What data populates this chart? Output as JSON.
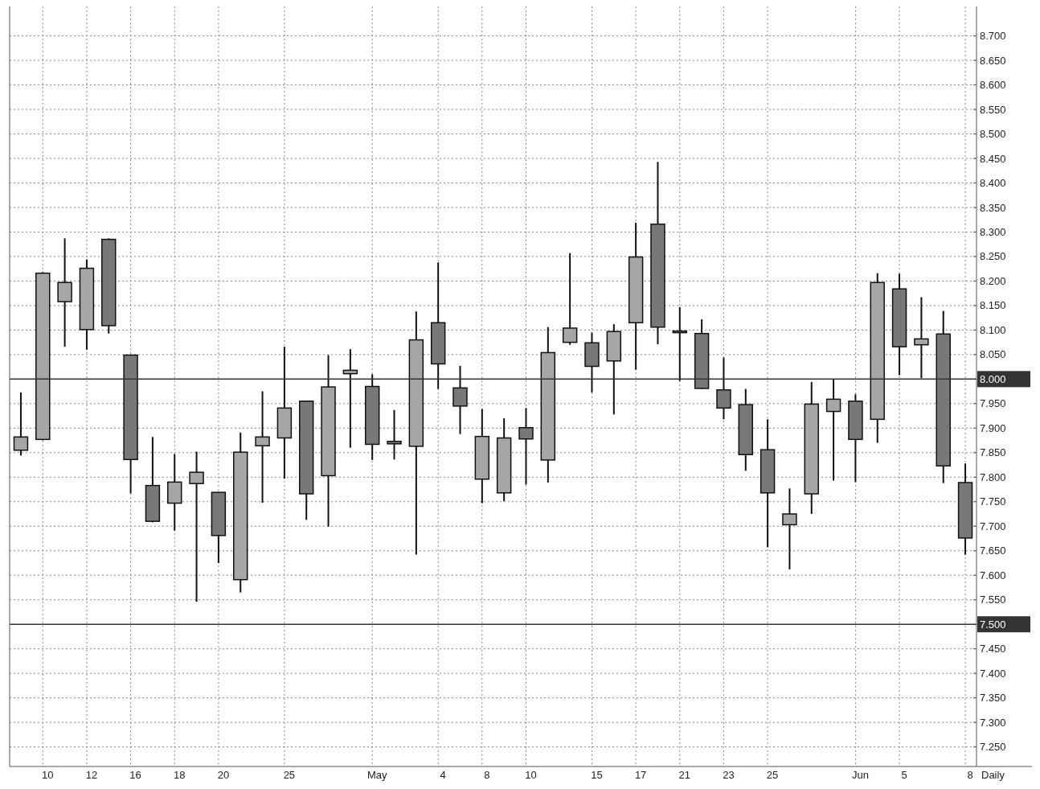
{
  "chart_data": {
    "type": "candlestick",
    "categories": [
      null,
      "10",
      null,
      "12",
      null,
      "16",
      null,
      "18",
      null,
      "20",
      null,
      null,
      "25",
      null,
      null,
      null,
      "May",
      null,
      null,
      "4",
      null,
      "8",
      null,
      "10",
      null,
      null,
      "15",
      null,
      "17",
      null,
      "21",
      null,
      "23",
      null,
      "25",
      null,
      null,
      null,
      "Jun",
      null,
      "5",
      null,
      null,
      "8"
    ],
    "ohlc": [
      [
        7.855,
        7.973,
        7.844,
        7.882
      ],
      [
        7.877,
        8.218,
        7.875,
        8.216
      ],
      [
        8.158,
        8.287,
        8.066,
        8.197
      ],
      [
        8.101,
        8.244,
        8.06,
        8.226
      ],
      [
        8.285,
        8.287,
        8.093,
        8.109
      ],
      [
        8.049,
        8.05,
        7.767,
        7.836
      ],
      [
        7.783,
        7.882,
        7.708,
        7.71
      ],
      [
        7.747,
        7.847,
        7.691,
        7.79
      ],
      [
        7.787,
        7.852,
        7.546,
        7.81
      ],
      [
        7.769,
        7.77,
        7.625,
        7.681
      ],
      [
        7.591,
        7.891,
        7.565,
        7.851
      ],
      [
        7.864,
        7.975,
        7.748,
        7.882
      ],
      [
        7.88,
        8.066,
        7.797,
        7.941
      ],
      [
        7.955,
        7.956,
        7.713,
        7.766
      ],
      [
        7.803,
        8.049,
        7.699,
        7.984
      ],
      [
        8.011,
        8.061,
        7.86,
        8.018
      ],
      [
        7.985,
        8.01,
        7.835,
        7.867
      ],
      [
        7.873,
        7.937,
        7.836,
        7.868
      ],
      [
        7.863,
        8.138,
        7.642,
        8.08
      ],
      [
        8.115,
        8.238,
        7.98,
        8.031
      ],
      [
        7.982,
        8.027,
        7.888,
        7.945
      ],
      [
        7.796,
        7.939,
        7.747,
        7.883
      ],
      [
        7.768,
        7.92,
        7.751,
        7.88
      ],
      [
        7.901,
        7.941,
        7.785,
        7.878
      ],
      [
        7.835,
        8.106,
        7.789,
        8.054
      ],
      [
        8.075,
        8.257,
        8.07,
        8.104
      ],
      [
        8.074,
        8.095,
        7.973,
        8.026
      ],
      [
        8.037,
        8.112,
        7.928,
        8.097
      ],
      [
        8.115,
        8.319,
        8.019,
        8.249
      ],
      [
        8.316,
        8.443,
        8.071,
        8.106
      ],
      [
        8.098,
        8.147,
        7.996,
        8.098
      ],
      [
        8.093,
        8.122,
        7.98,
        7.981
      ],
      [
        7.978,
        8.044,
        7.918,
        7.941
      ],
      [
        7.948,
        7.98,
        7.813,
        7.846
      ],
      [
        7.856,
        7.918,
        7.657,
        7.768
      ],
      [
        7.703,
        7.777,
        7.612,
        7.725
      ],
      [
        7.766,
        7.994,
        7.725,
        7.949
      ],
      [
        7.934,
        8.0,
        7.793,
        7.959
      ],
      [
        7.955,
        7.969,
        7.79,
        7.877
      ],
      [
        7.918,
        8.216,
        7.87,
        8.197
      ],
      [
        8.184,
        8.215,
        8.008,
        8.066
      ],
      [
        8.07,
        8.167,
        8.002,
        8.082
      ],
      [
        8.092,
        8.139,
        7.788,
        7.823
      ],
      [
        7.789,
        7.828,
        7.642,
        7.676
      ]
    ],
    "colors": [
      "#a6a6a6",
      "#a6a6a6",
      "#a6a6a6",
      "#a6a6a6",
      "#787878",
      "#787878",
      "#787878",
      "#a6a6a6",
      "#a6a6a6",
      "#787878",
      "#a6a6a6",
      "#a6a6a6",
      "#a6a6a6",
      "#787878",
      "#a6a6a6",
      "#a6a6a6",
      "#787878",
      "#787878",
      "#a6a6a6",
      "#787878",
      "#787878",
      "#a6a6a6",
      "#a6a6a6",
      "#787878",
      "#a6a6a6",
      "#a6a6a6",
      "#787878",
      "#a6a6a6",
      "#a6a6a6",
      "#787878",
      "#787878",
      "#787878",
      "#787878",
      "#787878",
      "#787878",
      "#a6a6a6",
      "#a6a6a6",
      "#a6a6a6",
      "#787878",
      "#a6a6a6",
      "#787878",
      "#a6a6a6",
      "#787878",
      "#787878"
    ],
    "ylim": [
      7.21,
      8.76
    ],
    "yticks": [
      {
        "value": 7.25,
        "label": "7.250"
      },
      {
        "value": 7.3,
        "label": "7.300"
      },
      {
        "value": 7.35,
        "label": "7.350"
      },
      {
        "value": 7.4,
        "label": "7.400"
      },
      {
        "value": 7.45,
        "label": "7.450"
      },
      {
        "value": 7.55,
        "label": "7.550"
      },
      {
        "value": 7.6,
        "label": "7.600"
      },
      {
        "value": 7.65,
        "label": "7.650"
      },
      {
        "value": 7.7,
        "label": "7.700"
      },
      {
        "value": 7.75,
        "label": "7.750"
      },
      {
        "value": 7.8,
        "label": "7.800"
      },
      {
        "value": 7.85,
        "label": "7.850"
      },
      {
        "value": 7.9,
        "label": "7.900"
      },
      {
        "value": 7.95,
        "label": "7.950"
      },
      {
        "value": 8.05,
        "label": "8.050"
      },
      {
        "value": 8.1,
        "label": "8.100"
      },
      {
        "value": 8.15,
        "label": "8.150"
      },
      {
        "value": 8.2,
        "label": "8.200"
      },
      {
        "value": 8.25,
        "label": "8.250"
      },
      {
        "value": 8.3,
        "label": "8.300"
      },
      {
        "value": 8.35,
        "label": "8.350"
      },
      {
        "value": 8.4,
        "label": "8.400"
      },
      {
        "value": 8.45,
        "label": "8.450"
      },
      {
        "value": 8.5,
        "label": "8.500"
      },
      {
        "value": 8.55,
        "label": "8.550"
      },
      {
        "value": 8.6,
        "label": "8.600"
      },
      {
        "value": 8.65,
        "label": "8.650"
      },
      {
        "value": 8.7,
        "label": "8.700"
      }
    ],
    "ref_lines": [
      {
        "axis": "y",
        "value": 8.0,
        "label": "8.000",
        "color": "#333333"
      },
      {
        "axis": "y",
        "value": 7.5,
        "label": "7.500",
        "color": "#333333"
      }
    ],
    "grid": true,
    "annotations": [
      "Daily"
    ]
  }
}
